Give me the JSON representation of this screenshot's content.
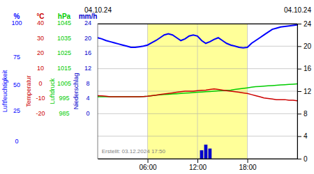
{
  "chart_data": {
    "type": "line",
    "xlim": [
      0,
      24
    ],
    "ylim": [
      0,
      24
    ],
    "xticks": [
      {
        "value": 6,
        "label": "06:00"
      },
      {
        "value": 12,
        "label": "12:00"
      },
      {
        "value": 18,
        "label": "18:00"
      }
    ],
    "yticks": [
      0,
      4,
      8,
      12,
      16,
      20,
      24
    ],
    "x2ticks": [
      {
        "value": 0,
        "label": "04.10.24"
      },
      {
        "value": 24,
        "label": "04.10.24"
      }
    ],
    "grid": true,
    "band": {
      "x": [
        6,
        18
      ],
      "color": "#ffff99"
    },
    "annotations": [
      {
        "text": "Erstellt: 03.12.2024 17:50"
      }
    ],
    "series": [
      {
        "name": "Luftfeuchtigkeit",
        "type": "line",
        "color": "#0000ff",
        "unit": "%",
        "unit_ticks": [
          {
            "value": 24,
            "label": "100"
          },
          {
            "value": 18,
            "label": "75"
          },
          {
            "value": 13,
            "label": "50"
          },
          {
            "value": 8.5,
            "label": "25"
          },
          {
            "value": 3,
            "label": "0"
          }
        ],
        "x": [
          0,
          0.5,
          1,
          1.5,
          2,
          2.5,
          3,
          3.5,
          4,
          4.5,
          5,
          5.5,
          6,
          6.5,
          7,
          7.5,
          8,
          8.5,
          9,
          9.5,
          10,
          10.5,
          11,
          11.5,
          12,
          12.5,
          13,
          13.5,
          14,
          14.5,
          15,
          15.5,
          16,
          16.5,
          17,
          17.5,
          18,
          18.5,
          19,
          19.5,
          20,
          20.5,
          21,
          21.5,
          22,
          22.5,
          23,
          23.5,
          24
        ],
        "values": [
          21.5,
          21.3,
          21.0,
          20.8,
          20.6,
          20.4,
          20.2,
          20.0,
          19.8,
          19.8,
          19.9,
          20.0,
          20.2,
          20.6,
          21.0,
          21.5,
          22.0,
          22.2,
          22.0,
          21.5,
          21.0,
          21.3,
          21.8,
          22.0,
          21.8,
          21.0,
          20.5,
          20.8,
          21.2,
          21.5,
          21.0,
          20.5,
          20.2,
          20.0,
          19.8,
          19.7,
          19.8,
          20.5,
          21.0,
          21.5,
          22.0,
          22.5,
          23.0,
          23.2,
          23.4,
          23.5,
          23.6,
          23.7,
          23.8
        ]
      },
      {
        "name": "Temperatur",
        "type": "line",
        "color": "#cc0000",
        "unit": "°C",
        "unit_ticks": [
          {
            "value": 24,
            "label": "40"
          },
          {
            "value": 21.33,
            "label": "30"
          },
          {
            "value": 18.67,
            "label": "20"
          },
          {
            "value": 16,
            "label": "10"
          },
          {
            "value": 13.33,
            "label": "0"
          },
          {
            "value": 10.67,
            "label": "-10"
          },
          {
            "value": 8,
            "label": "-20"
          }
        ],
        "x": [
          0,
          0.5,
          1,
          1.5,
          2,
          2.5,
          3,
          3.5,
          4,
          4.5,
          5,
          5.5,
          6,
          6.5,
          7,
          7.5,
          8,
          8.5,
          9,
          9.5,
          10,
          10.5,
          11,
          11.5,
          12,
          12.5,
          13,
          13.5,
          14,
          14.5,
          15,
          15.5,
          16,
          16.5,
          17,
          17.5,
          18,
          18.5,
          19,
          19.5,
          20,
          20.5,
          21,
          21.5,
          22,
          22.5,
          23,
          23.5,
          24
        ],
        "values": [
          11.2,
          11.15,
          11.1,
          11.0,
          11.0,
          11.0,
          11.0,
          11.0,
          11.0,
          11.0,
          11.0,
          11.05,
          11.1,
          11.2,
          11.3,
          11.4,
          11.5,
          11.6,
          11.7,
          11.8,
          11.9,
          12.0,
          12.0,
          12.0,
          12.1,
          12.15,
          12.2,
          12.3,
          12.4,
          12.3,
          12.2,
          12.1,
          12.0,
          11.9,
          11.8,
          11.7,
          11.6,
          11.4,
          11.2,
          11.0,
          10.8,
          10.7,
          10.6,
          10.5,
          10.5,
          10.5,
          10.4,
          10.4,
          10.3
        ]
      },
      {
        "name": "Luftdruck",
        "type": "line",
        "color": "#00cc00",
        "unit": "hPa",
        "unit_ticks": [
          {
            "value": 24,
            "label": "1045"
          },
          {
            "value": 21.33,
            "label": "1035"
          },
          {
            "value": 18.67,
            "label": "1025"
          },
          {
            "value": 16,
            "label": "1015"
          },
          {
            "value": 13.33,
            "label": "1005"
          },
          {
            "value": 10.67,
            "label": "995"
          },
          {
            "value": 8,
            "label": "985"
          }
        ],
        "x": [
          0,
          0.5,
          1,
          1.5,
          2,
          2.5,
          3,
          3.5,
          4,
          4.5,
          5,
          5.5,
          6,
          6.5,
          7,
          7.5,
          8,
          8.5,
          9,
          9.5,
          10,
          10.5,
          11,
          11.5,
          12,
          12.5,
          13,
          13.5,
          14,
          14.5,
          15,
          15.5,
          16,
          16.5,
          17,
          17.5,
          18,
          18.5,
          19,
          19.5,
          20,
          20.5,
          21,
          21.5,
          22,
          22.5,
          23,
          23.5,
          24
        ],
        "values": [
          11.0,
          11.0,
          11.0,
          11.0,
          11.0,
          11.0,
          11.0,
          11.0,
          11.0,
          11.0,
          11.0,
          11.05,
          11.1,
          11.2,
          11.3,
          11.35,
          11.4,
          11.45,
          11.5,
          11.55,
          11.6,
          11.65,
          11.7,
          11.75,
          11.8,
          11.85,
          11.9,
          11.95,
          12.0,
          12.05,
          12.1,
          12.15,
          12.2,
          12.3,
          12.4,
          12.5,
          12.6,
          12.7,
          12.8,
          12.85,
          12.9,
          12.95,
          13.0,
          13.05,
          13.1,
          13.15,
          13.2,
          13.25,
          13.3
        ]
      },
      {
        "name": "Niederschlag",
        "type": "bar",
        "color": "#0000cc",
        "unit": "mm/h",
        "unit_ticks": [
          {
            "value": 24,
            "label": "24"
          },
          {
            "value": 21.33,
            "label": "20"
          },
          {
            "value": 18.67,
            "label": "16"
          },
          {
            "value": 16,
            "label": "12"
          },
          {
            "value": 13.33,
            "label": "8"
          },
          {
            "value": 10.67,
            "label": "4"
          },
          {
            "value": 8,
            "label": "0"
          }
        ],
        "x": [
          12.5,
          13.0,
          13.5
        ],
        "values": [
          1.5,
          2.5,
          1.8
        ]
      }
    ]
  }
}
